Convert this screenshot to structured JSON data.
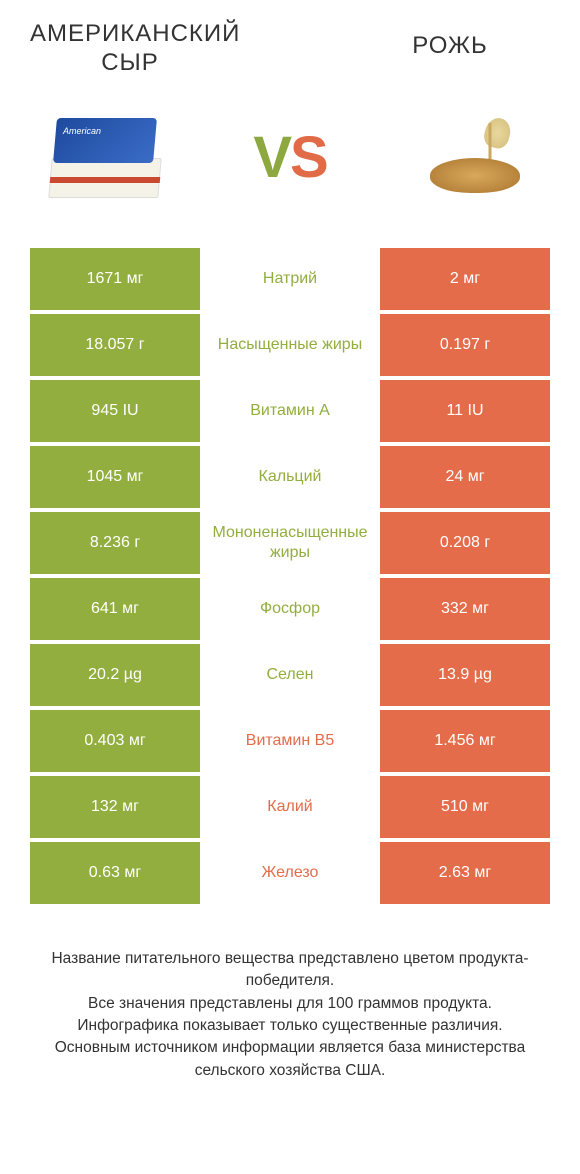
{
  "colors": {
    "left": "#92ae3e",
    "right": "#e46c4a",
    "mid_bg": "#ffffff",
    "text_dark": "#333333"
  },
  "header": {
    "left_title": "АМЕРИКАНСКИЙ СЫР",
    "right_title": "РОЖЬ",
    "vs_v": "V",
    "vs_s": "S",
    "cheese_label": "American"
  },
  "rows": [
    {
      "left": "1671 мг",
      "mid": "Натрий",
      "right": "2 мг",
      "winner": "left"
    },
    {
      "left": "18.057 г",
      "mid": "Насыщенные жиры",
      "right": "0.197 г",
      "winner": "left"
    },
    {
      "left": "945 IU",
      "mid": "Витамин A",
      "right": "11 IU",
      "winner": "left"
    },
    {
      "left": "1045 мг",
      "mid": "Кальций",
      "right": "24 мг",
      "winner": "left"
    },
    {
      "left": "8.236 г",
      "mid": "Мононенасыщенные жиры",
      "right": "0.208 г",
      "winner": "left"
    },
    {
      "left": "641 мг",
      "mid": "Фосфор",
      "right": "332 мг",
      "winner": "left"
    },
    {
      "left": "20.2 µg",
      "mid": "Селен",
      "right": "13.9 µg",
      "winner": "left"
    },
    {
      "left": "0.403 мг",
      "mid": "Витамин B5",
      "right": "1.456 мг",
      "winner": "right"
    },
    {
      "left": "132 мг",
      "mid": "Калий",
      "right": "510 мг",
      "winner": "right"
    },
    {
      "left": "0.63 мг",
      "mid": "Железо",
      "right": "2.63 мг",
      "winner": "right"
    }
  ],
  "footer": {
    "line1": "Название питательного вещества представлено цветом продукта-победителя.",
    "line2": "Все значения представлены для 100 граммов продукта.",
    "line3": "Инфографика показывает только существенные различия.",
    "line4": "Основным источником информации является база министерства сельского хозяйства США."
  }
}
